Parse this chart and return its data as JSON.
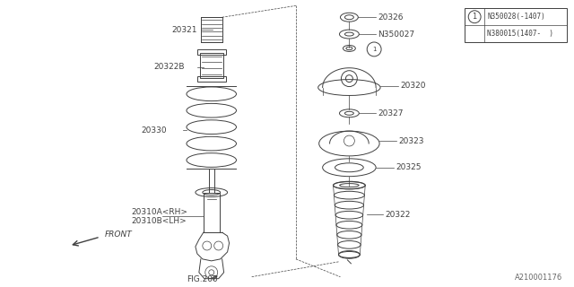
{
  "bg_color": "#ffffff",
  "line_color": "#404040",
  "box_line1": "N350028(-1407)",
  "box_line2": "N380015(1407-  )",
  "watermark": "A210001176",
  "fig_ref": "FIG.200"
}
